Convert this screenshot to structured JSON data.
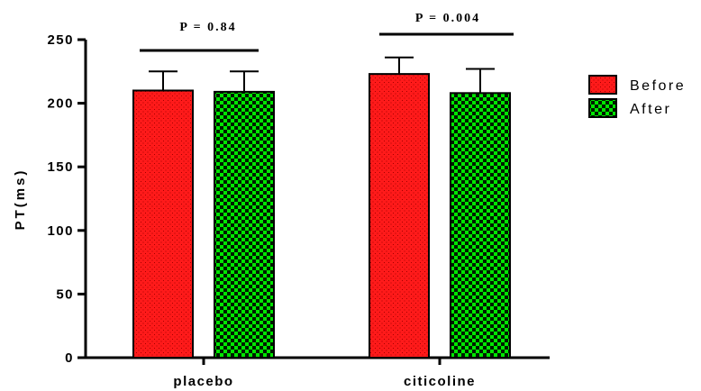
{
  "chart_data": {
    "type": "bar",
    "categories": [
      "placebo",
      "citicoline"
    ],
    "series": [
      {
        "name": "Before",
        "values": [
          210,
          223
        ],
        "errors": [
          15,
          13
        ],
        "color": "#ff1a1a",
        "pattern": "dotted"
      },
      {
        "name": "After",
        "values": [
          209,
          208
        ],
        "errors": [
          16,
          19
        ],
        "color": "#00e600",
        "pattern": "checkered"
      }
    ],
    "ylabel": "PT(ms)",
    "xlabel": "",
    "ylim": [
      0,
      250
    ],
    "yticks": [
      "0",
      "50",
      "100",
      "150",
      "200",
      "250"
    ],
    "annotations": [
      "P = 0.84",
      "P = 0.004"
    ],
    "legend_position": "top-right",
    "grid": false
  }
}
